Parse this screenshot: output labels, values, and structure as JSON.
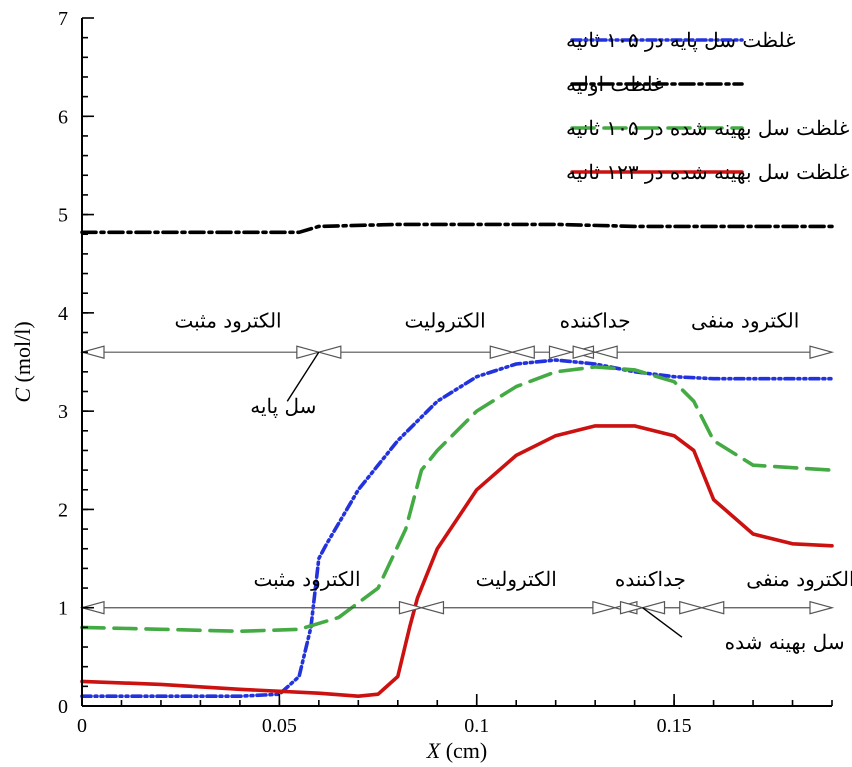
{
  "chart_data": {
    "type": "line",
    "xlabel": "X",
    "xunit": "(cm)",
    "ylabel": "C",
    "yunit": "(mol/l)",
    "xlim": [
      0,
      0.19
    ],
    "ylim": [
      0,
      7
    ],
    "x_ticks": [
      0,
      0.05,
      0.1,
      0.15
    ],
    "x_tick_labels": [
      "0",
      "0.05",
      "0.1",
      "0.15"
    ],
    "y_ticks": [
      0,
      1,
      2,
      3,
      4,
      5,
      6,
      7
    ],
    "y_tick_labels": [
      "0",
      "1",
      "2",
      "3",
      "4",
      "5",
      "6",
      "7"
    ],
    "grid": false,
    "legend_position": "top-right",
    "series": [
      {
        "name": "غلظت سل پایه در ۱۰۵ ثانیه",
        "color": "#2233dd",
        "style": "dash-dot-dot",
        "x": [
          0,
          0.02,
          0.04,
          0.05,
          0.055,
          0.058,
          0.06,
          0.062,
          0.07,
          0.08,
          0.09,
          0.1,
          0.11,
          0.12,
          0.13,
          0.14,
          0.15,
          0.16,
          0.17,
          0.19
        ],
        "y": [
          0.1,
          0.1,
          0.1,
          0.12,
          0.3,
          0.8,
          1.5,
          1.65,
          2.2,
          2.7,
          3.1,
          3.35,
          3.48,
          3.52,
          3.48,
          3.4,
          3.35,
          3.33,
          3.33,
          3.33
        ]
      },
      {
        "name": "غلظت اولیه",
        "color": "#000000",
        "style": "dash-dot",
        "x": [
          0,
          0.02,
          0.04,
          0.055,
          0.06,
          0.08,
          0.1,
          0.12,
          0.14,
          0.16,
          0.19
        ],
        "y": [
          4.82,
          4.82,
          4.82,
          4.82,
          4.88,
          4.9,
          4.9,
          4.9,
          4.88,
          4.88,
          4.88
        ]
      },
      {
        "name": "غلظت سل بهینه شده در ۱۰۵ ثانیه",
        "color": "#44aa44",
        "style": "dash",
        "x": [
          0,
          0.02,
          0.04,
          0.055,
          0.065,
          0.075,
          0.082,
          0.086,
          0.09,
          0.1,
          0.11,
          0.12,
          0.13,
          0.14,
          0.15,
          0.155,
          0.16,
          0.17,
          0.19
        ],
        "y": [
          0.8,
          0.78,
          0.76,
          0.78,
          0.9,
          1.2,
          1.8,
          2.4,
          2.6,
          3.0,
          3.25,
          3.4,
          3.45,
          3.42,
          3.3,
          3.1,
          2.7,
          2.45,
          2.4
        ]
      },
      {
        "name": "غلظت سل بهینه شده در ۱۲۳ ثانیه",
        "color": "#cc1111",
        "style": "solid",
        "x": [
          0,
          0.02,
          0.04,
          0.06,
          0.07,
          0.075,
          0.08,
          0.083,
          0.085,
          0.087,
          0.09,
          0.1,
          0.11,
          0.12,
          0.13,
          0.14,
          0.15,
          0.155,
          0.16,
          0.17,
          0.18,
          0.19
        ],
        "y": [
          0.25,
          0.22,
          0.17,
          0.13,
          0.1,
          0.12,
          0.3,
          0.8,
          1.1,
          1.3,
          1.6,
          2.2,
          2.55,
          2.75,
          2.85,
          2.85,
          2.75,
          2.6,
          2.1,
          1.75,
          1.65,
          1.63
        ]
      }
    ],
    "regions_base": {
      "y": 3.6,
      "boundaries": [
        0,
        0.06,
        0.109,
        0.124,
        0.13,
        0.19
      ],
      "labels": [
        {
          "text": "الکترود مثبت",
          "x": 0.037,
          "y": 3.85
        },
        {
          "text": "الکترولیت",
          "x": 0.092,
          "y": 3.85
        },
        {
          "text": "جداکننده",
          "x": 0.13,
          "y": 3.85
        },
        {
          "text": "الکترود منفی",
          "x": 0.168,
          "y": 3.85
        }
      ]
    },
    "regions_optimized": {
      "y": 1.0,
      "boundaries": [
        0,
        0.086,
        0.135,
        0.142,
        0.157,
        0.19
      ],
      "labels": [
        {
          "text": "الکترود مثبت",
          "x": 0.057,
          "y": 1.22
        },
        {
          "text": "الکترولیت",
          "x": 0.11,
          "y": 1.22
        },
        {
          "text": "جداکننده",
          "x": 0.144,
          "y": 1.22
        },
        {
          "text": "الکترود منفی",
          "x": 0.182,
          "y": 1.22
        }
      ]
    },
    "annotations": [
      {
        "text": "سل پایه",
        "x": 0.051,
        "y": 2.98,
        "to_x": 0.06,
        "to_y": 3.6,
        "from_x": 0.052,
        "from_y": 3.1
      },
      {
        "text": "سل بهینه شده",
        "x": 0.178,
        "y": 0.58,
        "to_x": 0.142,
        "to_y": 1.0,
        "from_x": 0.152,
        "from_y": 0.7
      }
    ]
  }
}
